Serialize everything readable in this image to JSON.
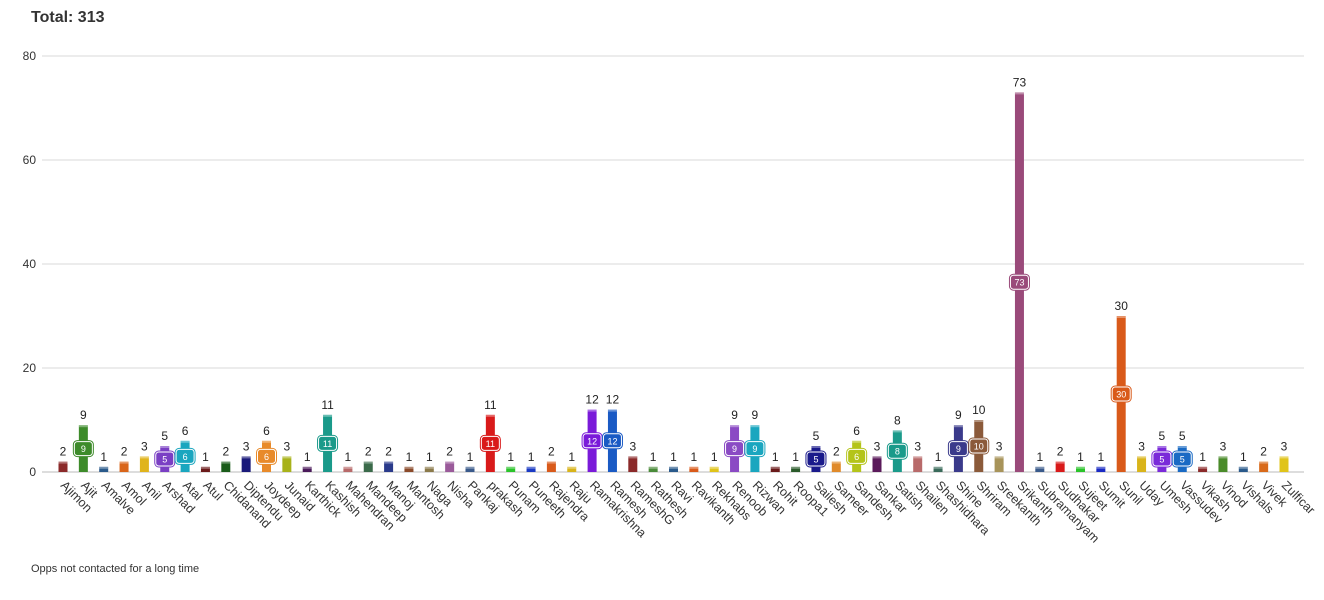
{
  "header": {
    "title": "Total: 313"
  },
  "footer": {
    "note": "Opps not contacted for a long time"
  },
  "chart_data": {
    "type": "bar",
    "ylim": [
      0,
      80
    ],
    "yticks": [
      0,
      20,
      40,
      60,
      80
    ],
    "grid": true,
    "categories": [
      "Ajimon",
      "Ajit",
      "Amalve",
      "Amol",
      "Anil",
      "Arshad",
      "Atal",
      "Atul",
      "Chidanand",
      "Diptendu",
      "Joydeep",
      "Junaid",
      "Karthick",
      "Kashish",
      "Mahendran",
      "Mandeep",
      "Manoj",
      "Mantosh",
      "Naga",
      "Nisha",
      "Pankaj",
      "prakash",
      "Punam",
      "Puneeth",
      "Rajendra",
      "Raju",
      "Ramakrishna",
      "Ramesh",
      "RameshG",
      "Rathesh",
      "Ravi",
      "Ravikanth",
      "Rekhabs",
      "Renoob",
      "Rizwan",
      "Rohit",
      "Roopa1",
      "Sailesh",
      "Sameer",
      "Sandesh",
      "Sankar",
      "Satish",
      "Shailen",
      "Shashidhara",
      "Shine",
      "Shriram",
      "Sreekanth",
      "Srikanth",
      "Subramanyam",
      "Sudhakar",
      "Sujeet",
      "Sumit",
      "Sunil",
      "Uday",
      "Umesh",
      "Vassudev",
      "Vikash",
      "Vinod",
      "Vishals",
      "Vivek",
      "Zulficar"
    ],
    "values": [
      2,
      9,
      1,
      2,
      3,
      5,
      6,
      1,
      2,
      3,
      6,
      3,
      1,
      11,
      1,
      2,
      2,
      1,
      1,
      2,
      1,
      11,
      1,
      1,
      2,
      1,
      12,
      12,
      3,
      1,
      1,
      1,
      1,
      9,
      9,
      1,
      1,
      5,
      2,
      6,
      3,
      8,
      3,
      1,
      9,
      10,
      3,
      73,
      1,
      2,
      1,
      1,
      30,
      3,
      5,
      5,
      1,
      3,
      1,
      2,
      3
    ],
    "colors": [
      "#8b2a2a",
      "#3d8b2a",
      "#2a5a8b",
      "#d9651a",
      "#e0b41c",
      "#7a3fc4",
      "#1aa6bf",
      "#6b1a1a",
      "#1a5c1a",
      "#1a1a7a",
      "#e88a2a",
      "#a8b21a",
      "#4a1a5a",
      "#1a9a8a",
      "#b86a6a",
      "#3a6a4a",
      "#2a3a8b",
      "#8b4a2a",
      "#8b7a4a",
      "#9a5a9a",
      "#3a5a8b",
      "#d91a1a",
      "#2ac42a",
      "#1a3ac4",
      "#d95a1a",
      "#d9b41a",
      "#7a1ad9",
      "#1a5ac4",
      "#8b2a2a",
      "#4a8b3a",
      "#2a5a8b",
      "#d95a1a",
      "#e0c41a",
      "#8a4ac4",
      "#1aa6bf",
      "#6a1a1a",
      "#2a5a2a",
      "#1a1a8b",
      "#e08a2a",
      "#b4c41a",
      "#5a1a5a",
      "#1a9a8a",
      "#b86a6a",
      "#3a6a5a",
      "#3a3a8b",
      "#8b5a3a",
      "#a8945a",
      "#9a4a7a",
      "#3a5a8b",
      "#d91a1a",
      "#2ac42a",
      "#1a2ac4",
      "#d95a1a",
      "#d9b41a",
      "#7a2ad9",
      "#1a6ac4",
      "#8b2a2a",
      "#4a8b2a",
      "#2a5a8b",
      "#d96a1a",
      "#e0c41a"
    ]
  }
}
